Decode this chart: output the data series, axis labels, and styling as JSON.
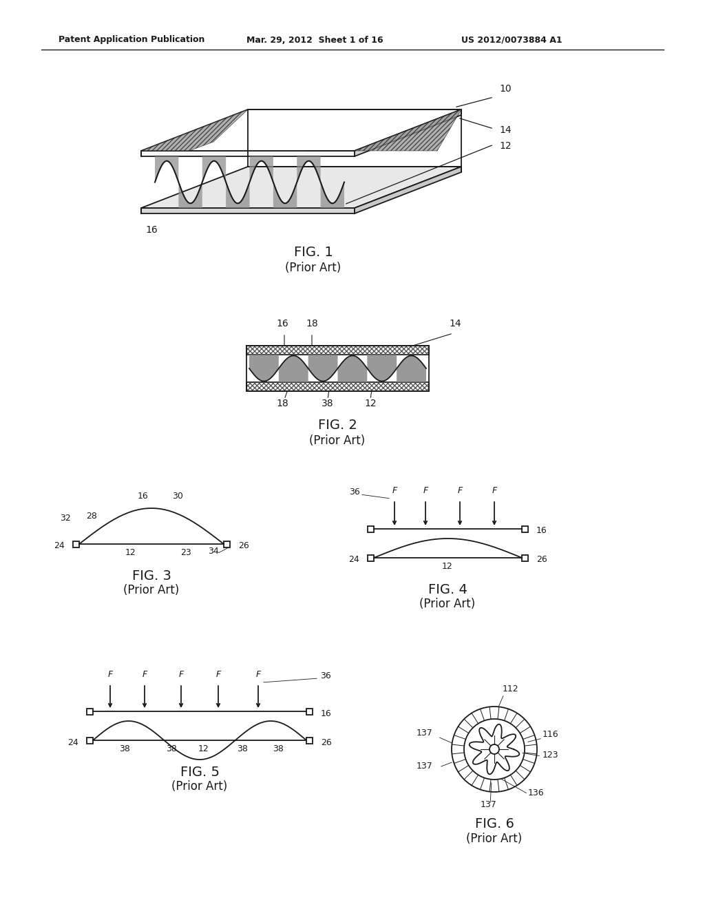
{
  "bg_color": "#ffffff",
  "line_color": "#1a1a1a",
  "header_text": "Patent Application Publication",
  "header_date": "Mar. 29, 2012  Sheet 1 of 16",
  "header_num": "US 2012/0073884 A1",
  "fig1_title": "FIG. 1",
  "fig1_sub": "(Prior Art)",
  "fig2_title": "FIG. 2",
  "fig2_sub": "(Prior Art)",
  "fig3_title": "FIG. 3",
  "fig3_sub": "(Prior Art)",
  "fig4_title": "FIG. 4",
  "fig4_sub": "(Prior Art)",
  "fig5_title": "FIG. 5",
  "fig5_sub": "(Prior Art)",
  "fig6_title": "FIG. 6",
  "fig6_sub": "(Prior Art)"
}
